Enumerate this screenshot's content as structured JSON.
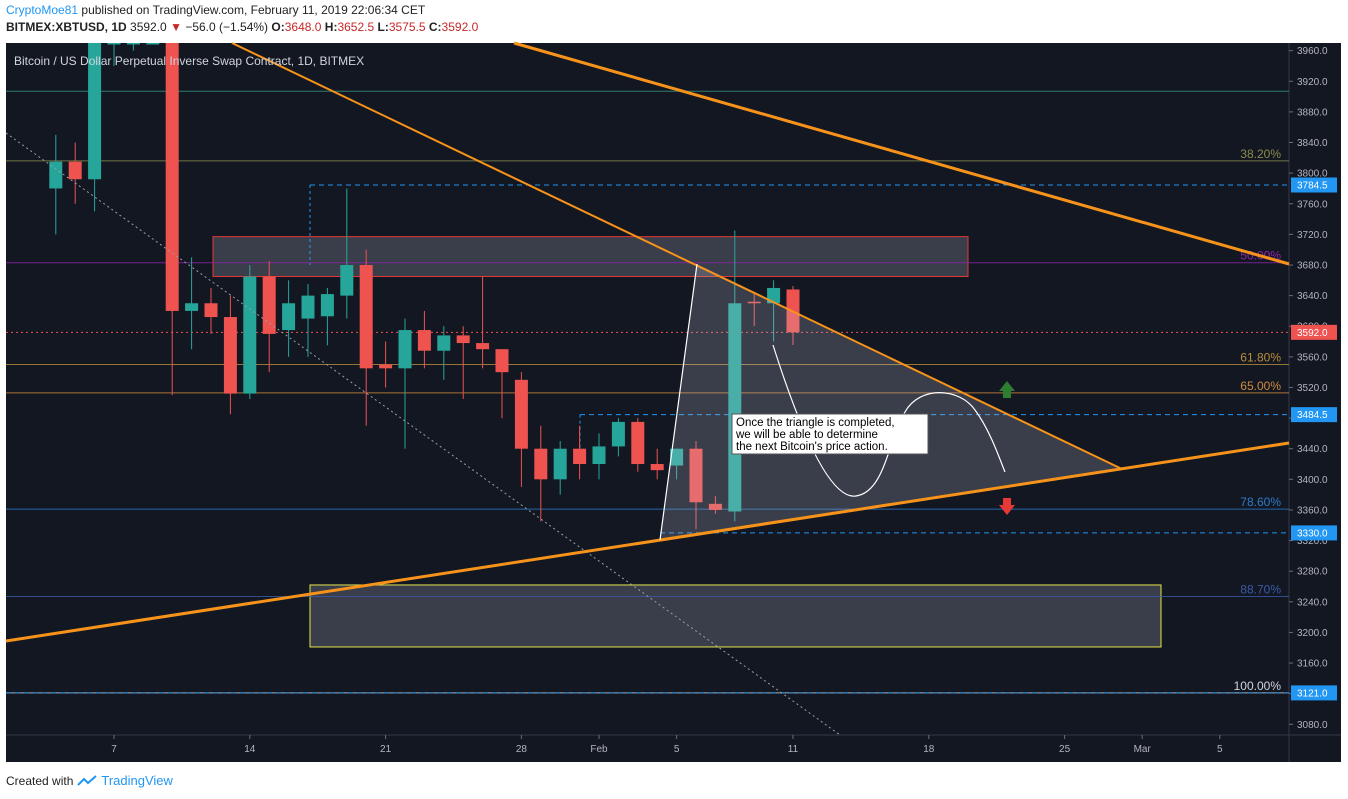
{
  "header": {
    "user": "CryptoMoe81",
    "published": "published on TradingView.com, February 11, 2019 22:06:34 CET",
    "symbol": "BITMEX:XBTUSD, 1D",
    "price": "3592.0",
    "change": "−56.0 (−1.54%)",
    "o_label": "O:",
    "o_val": "3648.0",
    "h_label": "H:",
    "h_val": "3652.5",
    "l_label": "L:",
    "l_val": "3575.5",
    "c_label": "C:",
    "c_val": "3592.0"
  },
  "footer": {
    "created_with": "Created with",
    "brand": "TradingView"
  },
  "colors": {
    "bg": "#131722",
    "up": "#26a69a",
    "down": "#ef5350",
    "trend": "#f7931a"
  },
  "chart_data": {
    "type": "candlestick",
    "title": "Bitcoin / US Dollar Perpetual Inverse Swap Contract, 1D, BITMEX",
    "y_ticks": [
      "3960.0",
      "3920.0",
      "3880.0",
      "3840.0",
      "3800.0",
      "3760.0",
      "3720.0",
      "3680.0",
      "3640.0",
      "3600.0",
      "3560.0",
      "3520.0",
      "3480.0",
      "3440.0",
      "3400.0",
      "3360.0",
      "3320.0",
      "3280.0",
      "3240.0",
      "3200.0",
      "3160.0",
      "3120.0",
      "3080.0"
    ],
    "ylim": [
      3066,
      3970
    ],
    "x_ticks": [
      {
        "day": 5,
        "label": "7"
      },
      {
        "day": 12,
        "label": "14"
      },
      {
        "day": 19,
        "label": "21"
      },
      {
        "day": 26,
        "label": "28"
      },
      {
        "day": 30,
        "label": "Feb"
      },
      {
        "day": 34,
        "label": "5"
      },
      {
        "day": 40,
        "label": "11"
      },
      {
        "day": 47,
        "label": "18"
      },
      {
        "day": 54,
        "label": "25"
      },
      {
        "day": 58,
        "label": "Mar"
      },
      {
        "day": 62,
        "label": "5"
      }
    ],
    "candles": [
      {
        "day": 2,
        "o": 3780,
        "h": 3850,
        "l": 3720,
        "c": 3815
      },
      {
        "day": 3,
        "o": 3815,
        "h": 3840,
        "l": 3760,
        "c": 3792
      },
      {
        "day": 4,
        "o": 3792,
        "h": 4000,
        "l": 3750,
        "c": 3980
      },
      {
        "day": 5,
        "o": 3980,
        "h": 4010,
        "l": 3940,
        "c": 3990
      },
      {
        "day": 6,
        "o": 3985,
        "h": 4020,
        "l": 3960,
        "c": 3995
      },
      {
        "day": 7,
        "o": 3992,
        "h": 4010,
        "l": 3970,
        "c": 3998
      },
      {
        "day": 8,
        "o": 3995,
        "h": 3990,
        "l": 3510,
        "c": 3620
      },
      {
        "day": 9,
        "o": 3620,
        "h": 3690,
        "l": 3570,
        "c": 3630
      },
      {
        "day": 10,
        "o": 3630,
        "h": 3650,
        "l": 3590,
        "c": 3612
      },
      {
        "day": 11,
        "o": 3612,
        "h": 3640,
        "l": 3485,
        "c": 3512
      },
      {
        "day": 12,
        "o": 3512,
        "h": 3680,
        "l": 3505,
        "c": 3665
      },
      {
        "day": 13,
        "o": 3665,
        "h": 3685,
        "l": 3540,
        "c": 3590
      },
      {
        "day": 14,
        "o": 3595,
        "h": 3660,
        "l": 3560,
        "c": 3630
      },
      {
        "day": 15,
        "o": 3610,
        "h": 3655,
        "l": 3560,
        "c": 3640
      },
      {
        "day": 16,
        "o": 3613,
        "h": 3650,
        "l": 3575,
        "c": 3642
      },
      {
        "day": 17,
        "o": 3640,
        "h": 3780,
        "l": 3610,
        "c": 3680
      },
      {
        "day": 18,
        "o": 3680,
        "h": 3700,
        "l": 3470,
        "c": 3545
      },
      {
        "day": 19,
        "o": 3550,
        "h": 3580,
        "l": 3520,
        "c": 3545
      },
      {
        "day": 20,
        "o": 3545,
        "h": 3610,
        "l": 3440,
        "c": 3595
      },
      {
        "day": 21,
        "o": 3595,
        "h": 3620,
        "l": 3545,
        "c": 3568
      },
      {
        "day": 22,
        "o": 3568,
        "h": 3600,
        "l": 3530,
        "c": 3588
      },
      {
        "day": 23,
        "o": 3588,
        "h": 3600,
        "l": 3505,
        "c": 3578
      },
      {
        "day": 24,
        "o": 3578,
        "h": 3665,
        "l": 3545,
        "c": 3570
      },
      {
        "day": 25,
        "o": 3570,
        "h": 3570,
        "l": 3480,
        "c": 3540
      },
      {
        "day": 26,
        "o": 3530,
        "h": 3540,
        "l": 3390,
        "c": 3440
      },
      {
        "day": 27,
        "o": 3440,
        "h": 3470,
        "l": 3345,
        "c": 3400
      },
      {
        "day": 28,
        "o": 3400,
        "h": 3450,
        "l": 3380,
        "c": 3440
      },
      {
        "day": 29,
        "o": 3440,
        "h": 3470,
        "l": 3400,
        "c": 3420
      },
      {
        "day": 30,
        "o": 3420,
        "h": 3460,
        "l": 3400,
        "c": 3443
      },
      {
        "day": 31,
        "o": 3443,
        "h": 3480,
        "l": 3430,
        "c": 3475
      },
      {
        "day": 32,
        "o": 3475,
        "h": 3480,
        "l": 3410,
        "c": 3420
      },
      {
        "day": 33,
        "o": 3420,
        "h": 3440,
        "l": 3400,
        "c": 3412
      },
      {
        "day": 34,
        "o": 3418,
        "h": 3440,
        "l": 3400,
        "c": 3440
      },
      {
        "day": 35,
        "o": 3440,
        "h": 3450,
        "l": 3335,
        "c": 3370
      },
      {
        "day": 36,
        "o": 3368,
        "h": 3378,
        "l": 3355,
        "c": 3360
      },
      {
        "day": 37,
        "o": 3358,
        "h": 3725,
        "l": 3345,
        "c": 3630
      },
      {
        "day": 38,
        "o": 3632,
        "h": 3645,
        "l": 3600,
        "c": 3630
      },
      {
        "day": 39,
        "o": 3630,
        "h": 3660,
        "l": 3580,
        "c": 3650
      },
      {
        "day": 40,
        "o": 3648,
        "h": 3652.5,
        "l": 3575.5,
        "c": 3592
      }
    ]
  },
  "levels": {
    "fib": [
      {
        "label": "38.20%",
        "price": 3816,
        "color": "#8a8d4a"
      },
      {
        "label": "50.00%",
        "price": 3683,
        "color": "#8e24aa"
      },
      {
        "label": "61.80%",
        "price": 3550,
        "color": "#b98d3a"
      },
      {
        "label": "65.00%",
        "price": 3513,
        "color": "#d08a3a"
      },
      {
        "label": "78.60%",
        "price": 3361,
        "color": "#2b7cc9"
      },
      {
        "label": "88.70%",
        "price": 3247,
        "color": "#3a5aa8"
      },
      {
        "label": "100.00%",
        "price": 3121,
        "color": "#d1d4dc"
      }
    ],
    "top_line_price": 3907,
    "price_tags": [
      {
        "label": "3784.5",
        "price": 3784.5,
        "color": "#2196f3"
      },
      {
        "label": "3592.0",
        "price": 3592.0,
        "color": "#ef5350"
      },
      {
        "label": "3484.5",
        "price": 3484.5,
        "color": "#2196f3"
      },
      {
        "label": "3330.0",
        "price": 3330.0,
        "color": "#2196f3"
      },
      {
        "label": "3121.0",
        "price": 3121.0,
        "color": "#2196f3"
      }
    ]
  },
  "annotation": {
    "lines": [
      "Once the triangle is completed,",
      "we will be able to determine",
      "the next Bitcoin's price action."
    ]
  }
}
